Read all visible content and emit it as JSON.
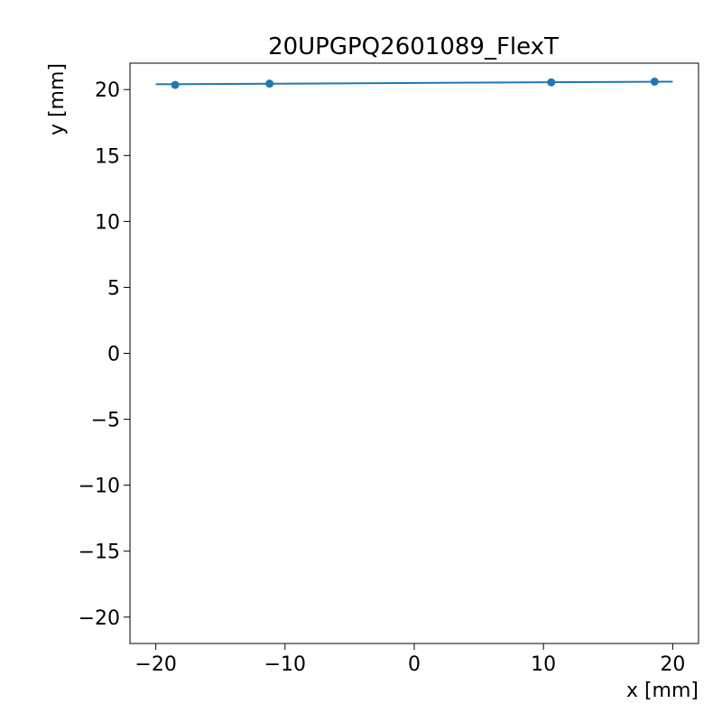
{
  "chart_data": {
    "type": "line",
    "title": "20UPGPQ2601089_FlexT",
    "xlabel": "x [mm]",
    "ylabel": "y [mm]",
    "xlim": [
      -22,
      22
    ],
    "ylim": [
      -22,
      22
    ],
    "xticks": [
      -20,
      -10,
      0,
      10,
      20
    ],
    "yticks": [
      -20,
      -15,
      -10,
      -5,
      0,
      5,
      10,
      15,
      20
    ],
    "xtick_labels": [
      "−20",
      "−10",
      "0",
      "10",
      "20"
    ],
    "ytick_labels": [
      "−20",
      "−15",
      "−10",
      "−5",
      "0",
      "5",
      "10",
      "15",
      "20"
    ],
    "grid": false,
    "color": "#1f77b4",
    "series": [
      {
        "kind": "scatter",
        "x": [
          -18.5,
          -11.2,
          10.6,
          18.6
        ],
        "y": [
          20.35,
          20.45,
          20.55,
          20.6
        ]
      },
      {
        "kind": "line",
        "x": [
          -20,
          20
        ],
        "y": [
          20.4,
          20.6
        ]
      }
    ]
  }
}
